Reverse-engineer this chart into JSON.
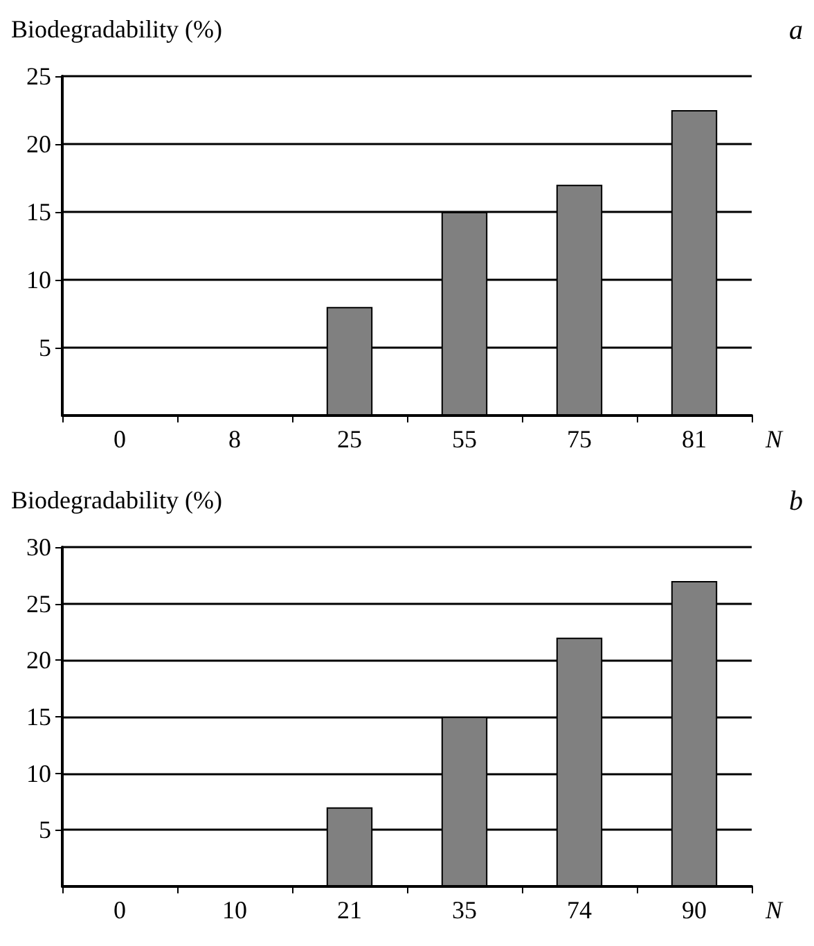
{
  "chart_data": [
    {
      "type": "bar",
      "ylabel": "Biodegradability (%)",
      "xlabel": "N",
      "annotations": [
        "a"
      ],
      "categories": [
        "0",
        "8",
        "25",
        "55",
        "75",
        "81"
      ],
      "values": [
        0,
        0,
        8,
        15,
        17,
        22.5
      ],
      "color": "#808080",
      "ylim": [
        0,
        25
      ],
      "yticks": [
        5,
        10,
        15,
        20,
        25
      ],
      "grid": "y"
    },
    {
      "type": "bar",
      "ylabel": "Biodegradability (%)",
      "xlabel": "N",
      "annotations": [
        "b"
      ],
      "categories": [
        "0",
        "10",
        "21",
        "35",
        "74",
        "90"
      ],
      "values": [
        0,
        0,
        7,
        15,
        22,
        27
      ],
      "color": "#808080",
      "ylim": [
        0,
        30
      ],
      "yticks": [
        5,
        10,
        15,
        20,
        25,
        30
      ],
      "grid": "y"
    }
  ]
}
